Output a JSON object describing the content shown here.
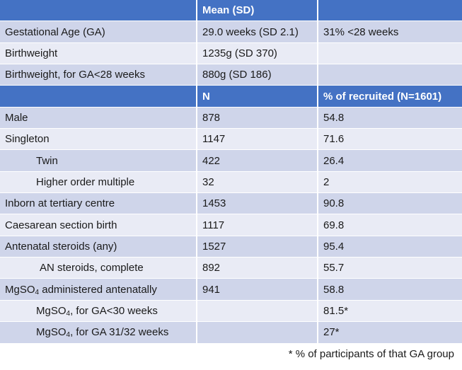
{
  "header1": {
    "col1": "",
    "col2": "Mean (SD)",
    "col3": ""
  },
  "rows1": [
    {
      "label": "Gestational Age (GA)",
      "value": "29.0  weeks (SD 2.1)",
      "extra": "31% <28 weeks"
    },
    {
      "label": "Birthweight",
      "value": "1235g (SD 370)",
      "extra": ""
    },
    {
      "label": "Birthweight, for GA<28 weeks",
      "value": "880g (SD 186)",
      "extra": ""
    }
  ],
  "header2": {
    "col1": "",
    "col2": "N",
    "col3": "% of recruited (N=1601)"
  },
  "rows2": [
    {
      "label": "Male",
      "n": "878",
      "pct": "54.8"
    },
    {
      "label": "Singleton",
      "n": "1147",
      "pct": "71.6"
    },
    {
      "label": "Twin",
      "n": "422",
      "pct": "26.4"
    },
    {
      "label": "Higher order multiple",
      "n": "32",
      "pct": "2"
    },
    {
      "label": "Inborn at tertiary centre",
      "n": "1453",
      "pct": "90.8"
    },
    {
      "label": "Caesarean section birth",
      "n": "1117",
      "pct": "69.8"
    },
    {
      "label": "Antenatal steroids (any)",
      "n": "1527",
      "pct": "95.4"
    },
    {
      "label": "AN steroids, complete",
      "n": "892",
      "pct": "55.7"
    },
    {
      "label_pre": "MgSO",
      "label_sub": "4",
      "label_post": " administered antenatally",
      "n": "941",
      "pct": "58.8"
    },
    {
      "label_pre": "MgSO",
      "label_sub": "4",
      "label_post": ", for GA<30 weeks",
      "n": "",
      "pct": "81.5*"
    },
    {
      "label_pre": "MgSO",
      "label_sub": "4",
      "label_post": ", for GA 31/32 weeks",
      "n": "",
      "pct": "27*"
    }
  ],
  "footnote": "* % of participants of that GA group",
  "colors": {
    "header": "#4472c4",
    "row_dark": "#cfd5ea",
    "row_light": "#e9ebf5"
  }
}
